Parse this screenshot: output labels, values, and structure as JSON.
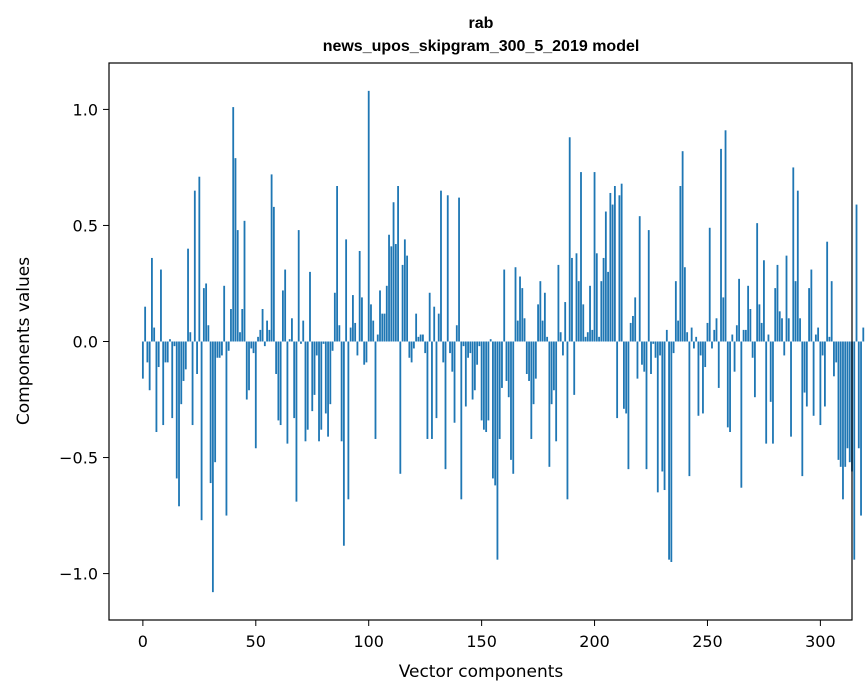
{
  "chart_data": {
    "type": "bar",
    "title": "rab",
    "subtitle": "news_upos_skipgram_300_5_2019 model",
    "xlabel": "Vector components",
    "ylabel": "Components values",
    "xlim": [
      -15,
      314
    ],
    "ylim": [
      -1.2,
      1.2
    ],
    "xticks": [
      0,
      50,
      100,
      150,
      200,
      250,
      300
    ],
    "xtick_labels": [
      "0",
      "50",
      "100",
      "150",
      "200",
      "250",
      "300"
    ],
    "yticks": [
      1.0,
      0.5,
      0.0,
      -0.5,
      -1.0
    ],
    "ytick_labels": [
      "1.0",
      "0.5",
      "0.0",
      "−0.5",
      "−1.0"
    ],
    "grid": false,
    "bar_color": "#1f77b4",
    "values": [
      -0.16,
      0.15,
      -0.09,
      -0.21,
      0.36,
      0.06,
      -0.39,
      -0.11,
      0.31,
      -0.36,
      -0.09,
      -0.09,
      0.01,
      -0.33,
      -0.02,
      -0.59,
      -0.71,
      -0.27,
      -0.17,
      -0.12,
      0.4,
      0.04,
      -0.36,
      0.65,
      -0.14,
      0.71,
      -0.77,
      0.23,
      0.25,
      0.07,
      -0.61,
      -1.08,
      -0.52,
      -0.07,
      -0.07,
      -0.06,
      0.24,
      -0.75,
      -0.04,
      0.14,
      1.01,
      0.79,
      0.48,
      0.04,
      0.14,
      0.52,
      -0.25,
      -0.21,
      -0.03,
      -0.05,
      -0.46,
      0.02,
      0.05,
      0.14,
      -0.02,
      0.09,
      0.05,
      0.72,
      0.58,
      -0.14,
      -0.34,
      -0.36,
      0.22,
      0.31,
      -0.44,
      0.01,
      0.1,
      -0.33,
      -0.69,
      0.48,
      -0.01,
      0.09,
      -0.43,
      -0.38,
      0.3,
      -0.3,
      -0.23,
      -0.06,
      -0.43,
      -0.38,
      -0.01,
      -0.31,
      -0.41,
      -0.27,
      -0.04,
      0.21,
      0.67,
      0.07,
      -0.43,
      -0.88,
      0.44,
      -0.68,
      0.06,
      0.2,
      0.08,
      -0.06,
      0.39,
      0.19,
      -0.1,
      -0.09,
      1.08,
      0.16,
      0.09,
      -0.42,
      0.03,
      0.22,
      0.12,
      0.12,
      0.24,
      0.46,
      0.41,
      0.6,
      0.42,
      0.67,
      -0.57,
      0.33,
      0.44,
      0.37,
      -0.07,
      -0.09,
      -0.03,
      0.12,
      0.02,
      0.03,
      0.03,
      -0.05,
      -0.42,
      0.21,
      -0.42,
      0.15,
      -0.33,
      0.12,
      0.65,
      -0.09,
      -0.55,
      0.63,
      -0.05,
      -0.13,
      -0.35,
      0.07,
      0.62,
      -0.68,
      -0.02,
      -0.28,
      -0.07,
      -0.05,
      -0.25,
      -0.21,
      -0.1,
      -0.02,
      -0.34,
      -0.38,
      -0.39,
      -0.34,
      0.01,
      -0.59,
      -0.62,
      -0.94,
      -0.42,
      -0.2,
      0.31,
      -0.17,
      -0.24,
      -0.51,
      -0.57,
      0.32,
      0.09,
      0.28,
      0.23,
      0.1,
      -0.14,
      -0.17,
      -0.42,
      -0.27,
      -0.16,
      0.16,
      0.26,
      0.09,
      0.21,
      0.02,
      -0.54,
      -0.27,
      -0.21,
      -0.43,
      0.33,
      0.04,
      -0.06,
      0.17,
      -0.68,
      0.88,
      0.36,
      -0.23,
      0.38,
      0.26,
      0.73,
      0.16,
      0.02,
      0.04,
      0.24,
      0.05,
      0.73,
      0.38,
      0.02,
      0.26,
      0.36,
      0.56,
      0.3,
      0.64,
      0.59,
      0.67,
      -0.33,
      0.63,
      0.68,
      -0.29,
      -0.31,
      -0.55,
      0.08,
      0.11,
      0.19,
      -0.16,
      0.54,
      -0.1,
      -0.13,
      -0.55,
      0.48,
      -0.14,
      -0.01,
      -0.07,
      -0.65,
      -0.06,
      -0.56,
      -0.64,
      0.05,
      -0.94,
      -0.95,
      -0.05,
      0.26,
      0.09,
      0.67,
      0.82,
      0.32,
      0.04,
      -0.58,
      0.06,
      -0.03,
      0.02,
      -0.32,
      -0.06,
      -0.31,
      -0.11,
      0.08,
      0.49,
      -0.03,
      0.05,
      0.1,
      -0.2,
      0.83,
      0.19,
      0.91,
      -0.37,
      -0.39,
      0.03,
      -0.13,
      0.07,
      0.27,
      -0.63,
      0.05,
      0.05,
      0.24,
      0.14,
      -0.07,
      -0.24,
      0.51,
      0.16,
      0.08,
      0.35,
      -0.44,
      0.03,
      -0.26,
      -0.44,
      0.23,
      0.33,
      0.13,
      0.1,
      -0.06,
      0.37,
      0.1,
      -0.41,
      0.75,
      0.26,
      0.65,
      0.1,
      -0.58,
      -0.22,
      -0.28,
      0.23,
      0.31,
      -0.32,
      0.03,
      0.06,
      -0.36,
      -0.06,
      -0.28,
      0.43,
      0.02,
      0.26,
      -0.15,
      -0.09,
      -0.51,
      -0.54,
      -0.68,
      -0.54,
      -0.46,
      -0.52,
      -0.56,
      -0.94,
      0.59,
      -0.46,
      -0.75,
      0.06
    ]
  }
}
